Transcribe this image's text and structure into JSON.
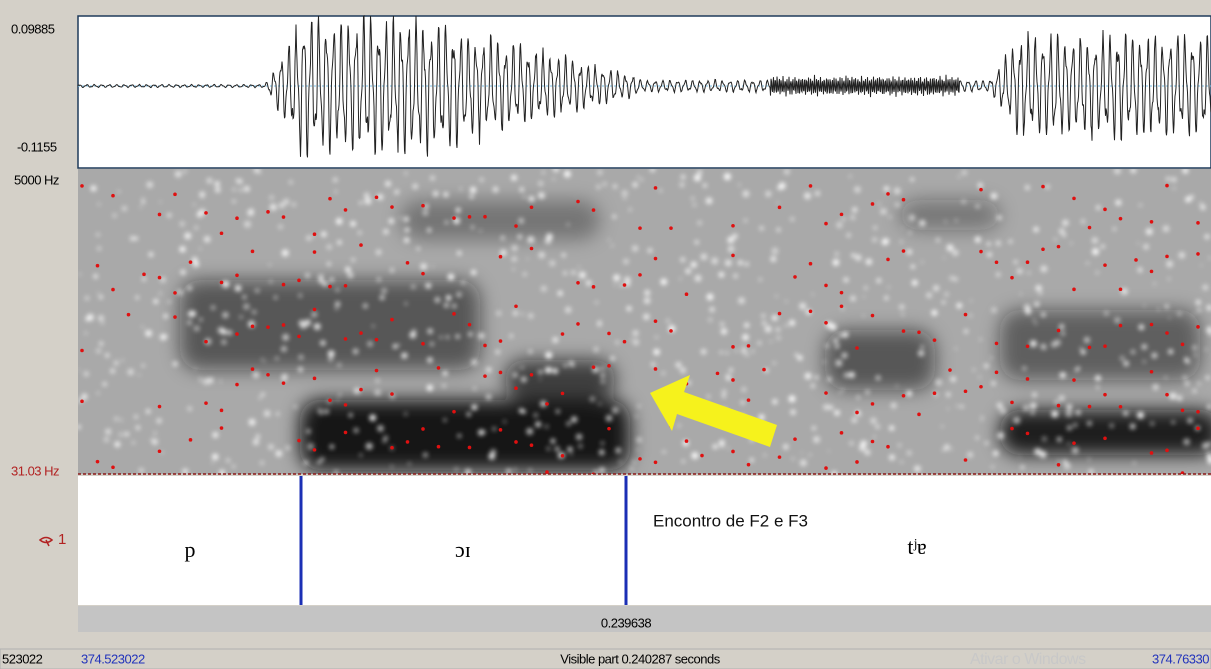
{
  "waveform": {
    "max_label": "0.09885",
    "min_label": "-0.1155"
  },
  "spectrogram": {
    "top_label": "5000 Hz",
    "bottom_label": "31.03 Hz"
  },
  "tier": {
    "number": "1",
    "intervals": [
      "p",
      "ɔɪ",
      "tʲɐ"
    ]
  },
  "annotation": "Encontro de F2 e F3",
  "cursor_time": "0.239638",
  "footer": {
    "left_truncated": "523022",
    "start": "374.523022",
    "visible": "Visible part 0.240287 seconds",
    "watermark": "Ativar o Windows",
    "end": "374.76330"
  }
}
